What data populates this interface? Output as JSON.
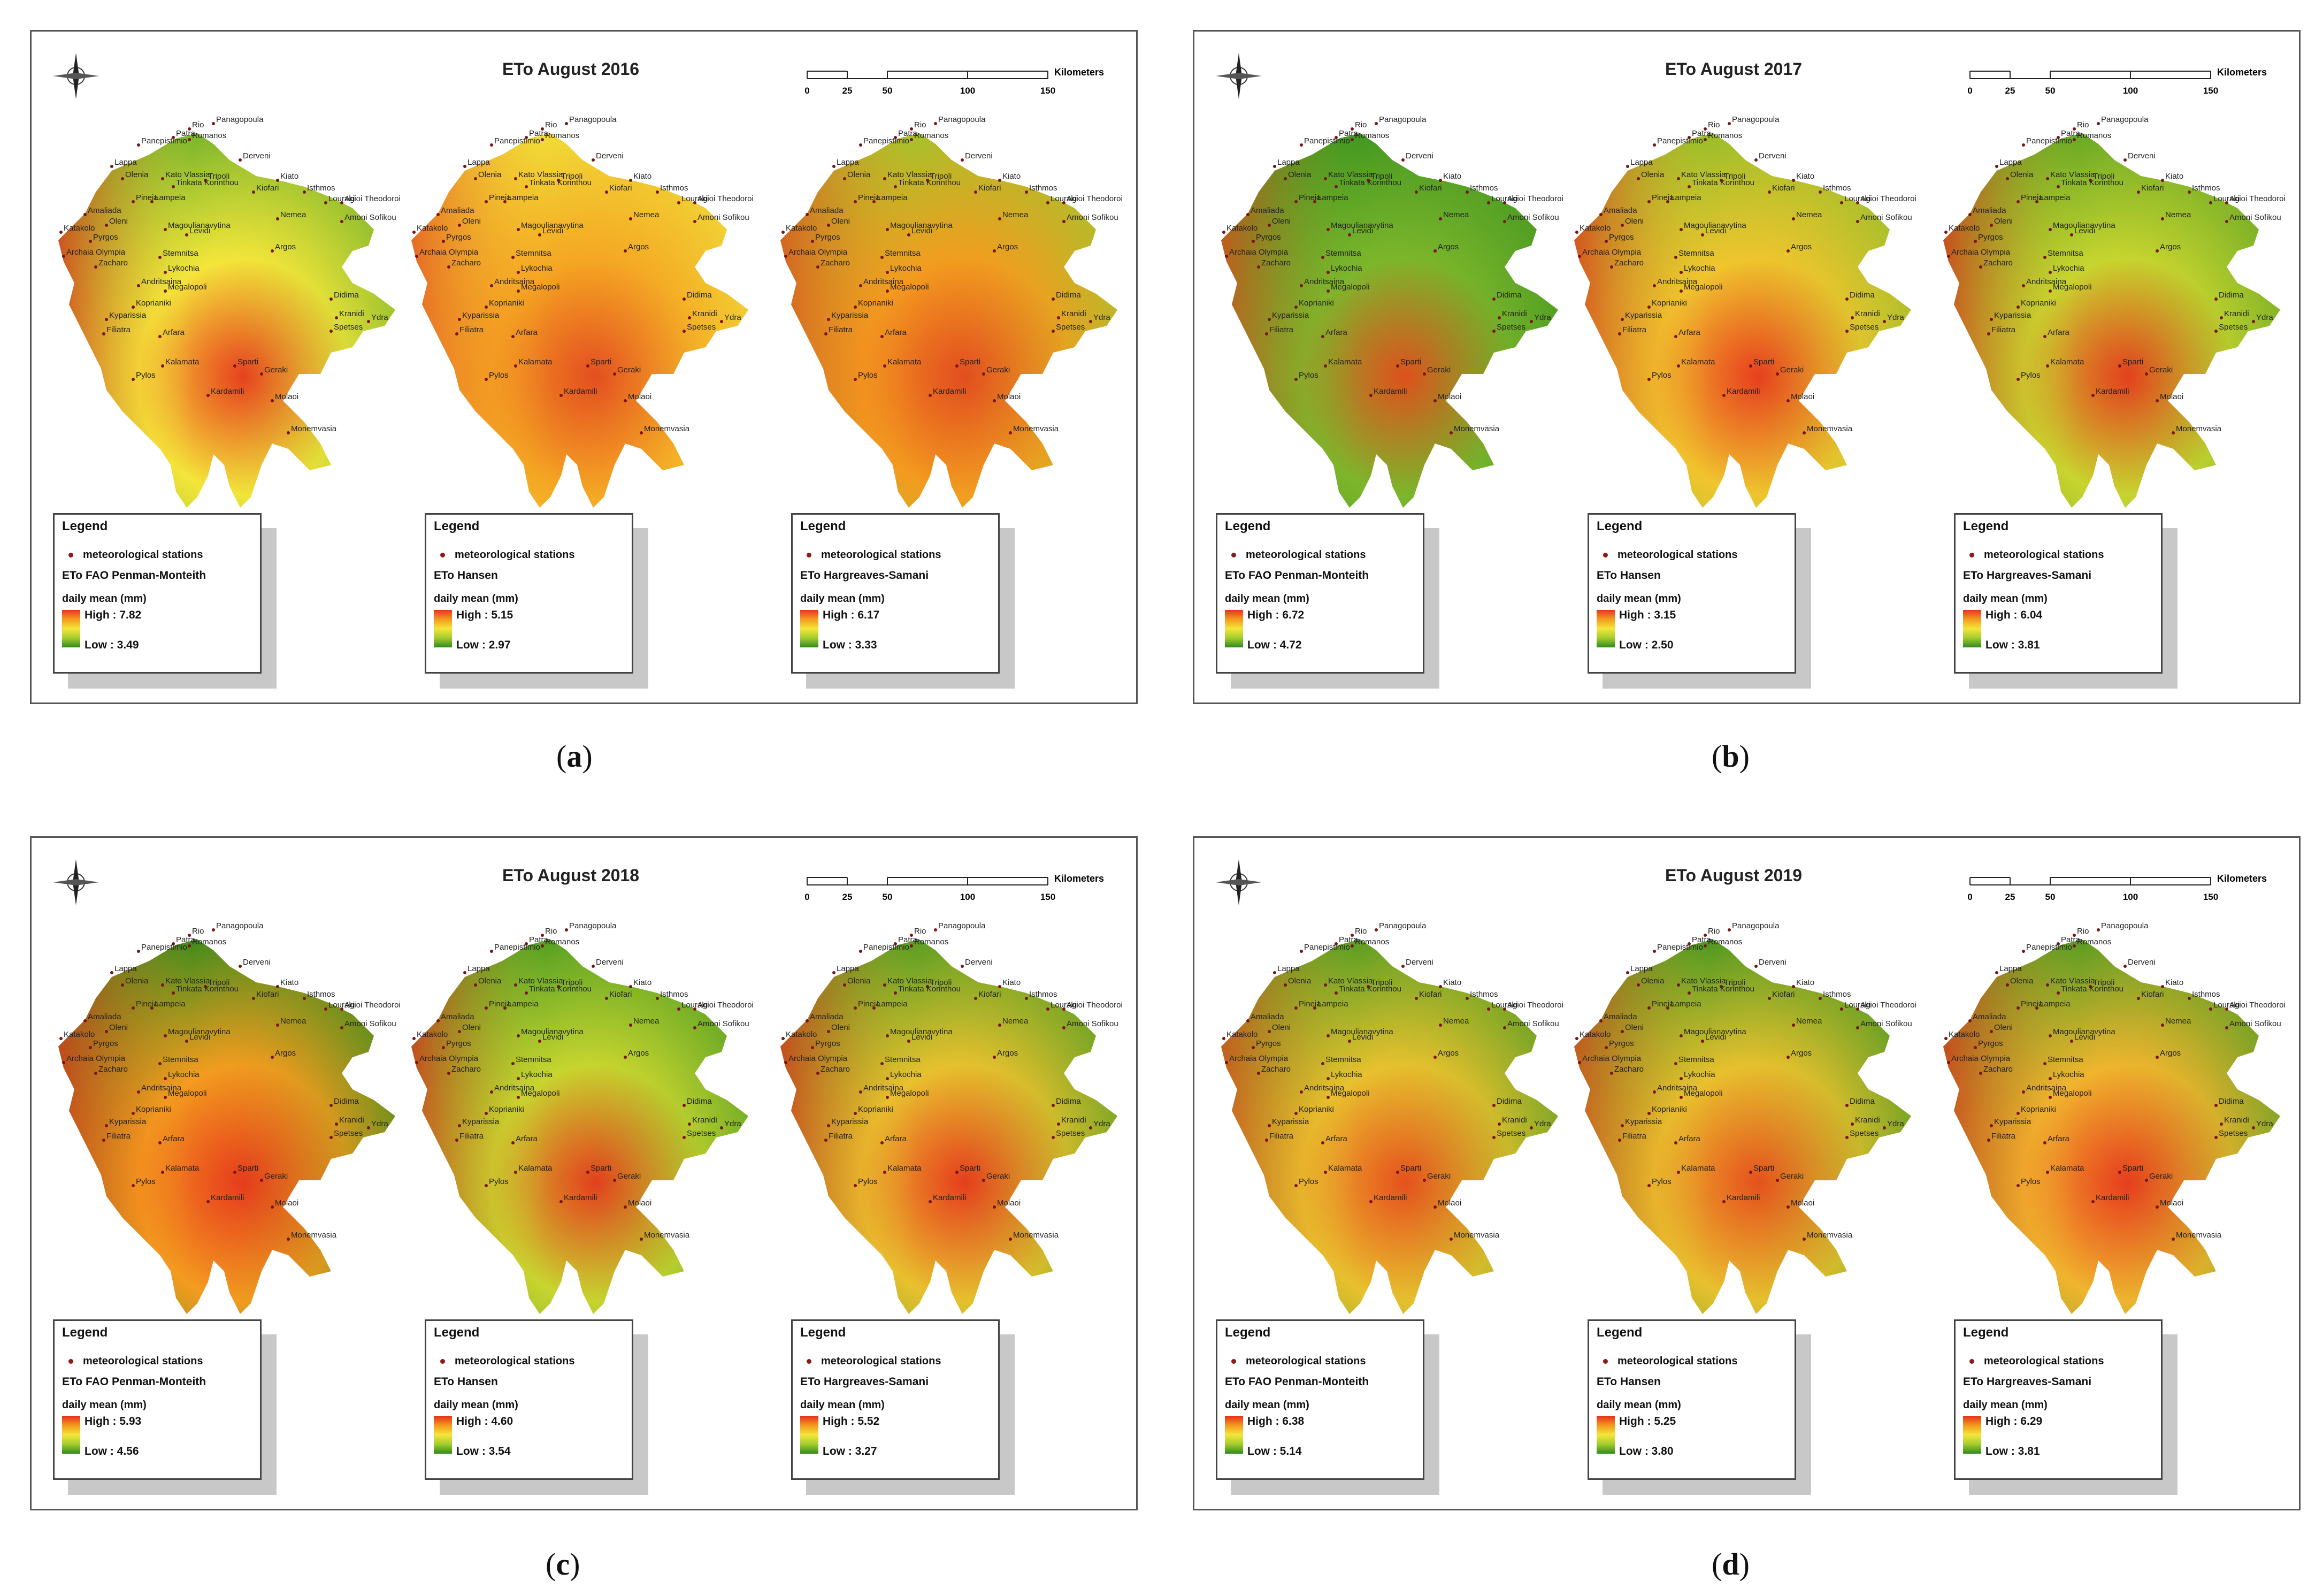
{
  "panels": [
    {
      "caption": "a",
      "title": "ETo August 2016",
      "maps": [
        {
          "method": "ETo FAO Penman-Monteith",
          "high": "High : 7.82",
          "low": "Low : 3.49",
          "scheme": [
            "#f4e63a",
            "#6fb02a",
            "#e8331c"
          ]
        },
        {
          "method": "ETo Hansen",
          "high": "High : 5.15",
          "low": "Low : 2.97",
          "scheme": [
            "#f5a623",
            "#f0e23a",
            "#e2451f"
          ]
        },
        {
          "method": "ETo Hargreaves-Samani",
          "high": "High : 6.17",
          "low": "Low : 3.33",
          "scheme": [
            "#f39c1f",
            "#9fc52d",
            "#e2451f"
          ]
        }
      ]
    },
    {
      "caption": "b",
      "title": "ETo August 2017",
      "maps": [
        {
          "method": "ETo FAO Penman-Monteith",
          "high": "High : 6.72",
          "low": "Low : 4.72",
          "scheme": [
            "#7db62b",
            "#3d9420",
            "#e8481c"
          ]
        },
        {
          "method": "ETo Hansen",
          "high": "High : 3.15",
          "low": "Low : 2.50",
          "scheme": [
            "#f0c52e",
            "#8fbd2a",
            "#e8331c"
          ]
        },
        {
          "method": "ETo Hargreaves-Samani",
          "high": "High : 6.04",
          "low": "Low : 3.81",
          "scheme": [
            "#c8d52f",
            "#5fa324",
            "#e8331c"
          ]
        }
      ]
    },
    {
      "caption": "c",
      "title": "ETo August 2018",
      "maps": [
        {
          "method": "ETo FAO Penman-Monteith",
          "high": "High : 5.93",
          "low": "Low : 4.56",
          "scheme": [
            "#f39c1f",
            "#2f8a1c",
            "#e8331c"
          ]
        },
        {
          "method": "ETo Hansen",
          "high": "High : 4.60",
          "low": "Low : 3.54",
          "scheme": [
            "#c8d52f",
            "#4a9a22",
            "#e8331c"
          ]
        },
        {
          "method": "ETo Hargreaves-Samani",
          "high": "High : 5.52",
          "low": "Low : 3.27",
          "scheme": [
            "#e8c12e",
            "#4a9a22",
            "#e8331c"
          ]
        }
      ]
    },
    {
      "caption": "d",
      "title": "ETo August 2019",
      "maps": [
        {
          "method": "ETo FAO Penman-Monteith",
          "high": "High : 6.38",
          "low": "Low : 5.14",
          "scheme": [
            "#e8c12e",
            "#4a9a22",
            "#e8481c"
          ]
        },
        {
          "method": "ETo Hansen",
          "high": "High : 5.25",
          "low": "Low : 3.80",
          "scheme": [
            "#e8c12e",
            "#3d9420",
            "#e8481c"
          ]
        },
        {
          "method": "ETo Hargreaves-Samani",
          "high": "High : 6.29",
          "low": "Low : 3.81",
          "scheme": [
            "#f0b52e",
            "#4a9a22",
            "#e8331c"
          ]
        }
      ]
    }
  ],
  "legend": {
    "title": "Legend",
    "stations": "meteorological stations",
    "unit": "daily mean (mm)"
  },
  "scale": {
    "ticks": [
      "0",
      "25",
      "50",
      "100",
      "150"
    ],
    "unit": "Kilometers"
  },
  "stations": [
    "Rio",
    "Panagopoula",
    "Patra",
    "Romanos",
    "Panepistimio",
    "Derveni",
    "Lappa",
    "Olenia",
    "Kato Vlassia",
    "Tripoli",
    "Kiato",
    "Tinkata Korinthou",
    "Kiofari",
    "Isthmos",
    "Pineia",
    "Lampeia",
    "Nemea",
    "Amaliada",
    "Oleni",
    "Pyrgos",
    "Magoulianavytina",
    "Levidi",
    "Argos",
    "Zacharo",
    "Stemnitsa",
    "Lykochia",
    "Andritsaina",
    "Megalopoli",
    "Kyparissia",
    "Koprianiki",
    "Filiatra",
    "Arfara",
    "Kalamata",
    "Sparti",
    "Geraki",
    "Kardamili",
    "Molaoi",
    "Pylos",
    "Monemvasia",
    "Didima",
    "Kranidi",
    "Spetses",
    "Ydra",
    "Katakolo",
    "Archaia Olympia",
    "Agioi Theodoroi",
    "Louraki",
    "Amoni Sofikou"
  ]
}
